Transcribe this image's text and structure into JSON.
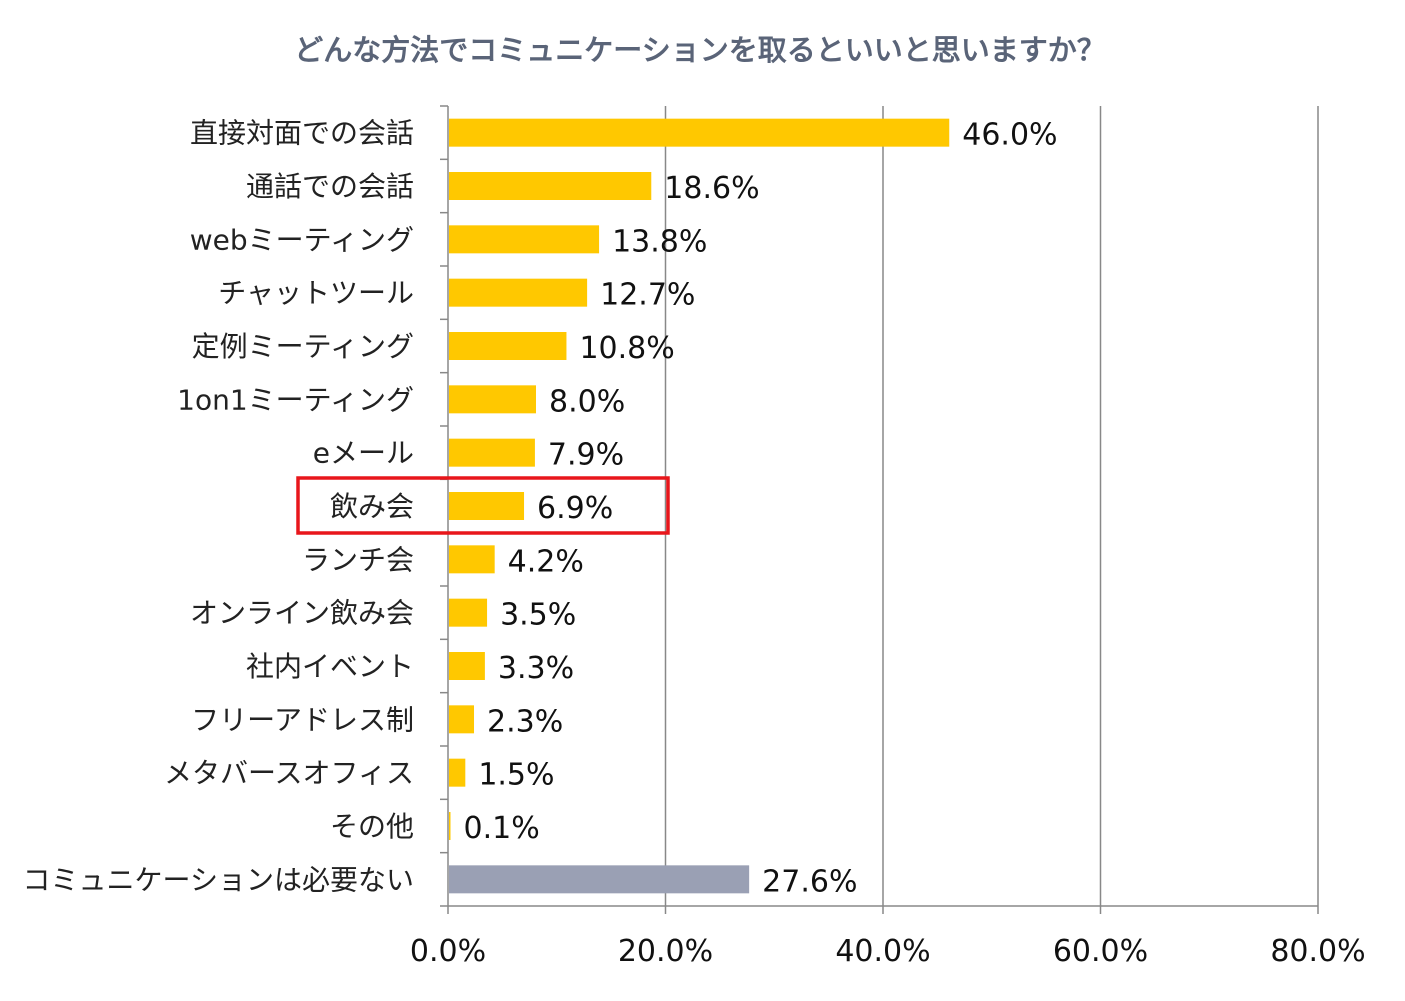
{
  "chart_data": {
    "type": "bar",
    "orientation": "horizontal",
    "title": "どんな方法でコミュニケーションを取るといいと思いますか？",
    "categories": [
      "直接対面での会話",
      "通話での会話",
      "webミーティング",
      "チャットツール",
      "定例ミーティング",
      "1on1ミーティング",
      "eメール",
      "飲み会",
      "ランチ会",
      "オンライン飲み会",
      "社内イベント",
      "フリーアドレス制",
      "メタバースオフィス",
      "その他",
      "コミュニケーションは必要ない"
    ],
    "values": [
      46.0,
      18.6,
      13.8,
      12.7,
      10.8,
      8.0,
      7.9,
      6.9,
      4.2,
      3.5,
      3.3,
      2.3,
      1.5,
      0.1,
      27.6
    ],
    "value_labels": [
      "46.0%",
      "18.6%",
      "13.8%",
      "12.7%",
      "10.8%",
      "8.0%",
      "7.9%",
      "6.9%",
      "4.2%",
      "3.5%",
      "3.3%",
      "2.3%",
      "1.5%",
      "0.1%",
      "27.6%"
    ],
    "xlim": [
      0,
      80
    ],
    "x_ticks": [
      0,
      20,
      40,
      60,
      80
    ],
    "x_tick_labels": [
      "0.0%",
      "20.0%",
      "40.0%",
      "60.0%",
      "80.0%"
    ],
    "xlabel": "",
    "ylabel": "",
    "grid": true,
    "highlighted_category": "飲み会",
    "colors": {
      "bar": "#ffc800",
      "bar_special": "#9aa0b4",
      "highlight_box": "#e8161b",
      "gridline": "#888888",
      "title": "#5a6478"
    }
  }
}
